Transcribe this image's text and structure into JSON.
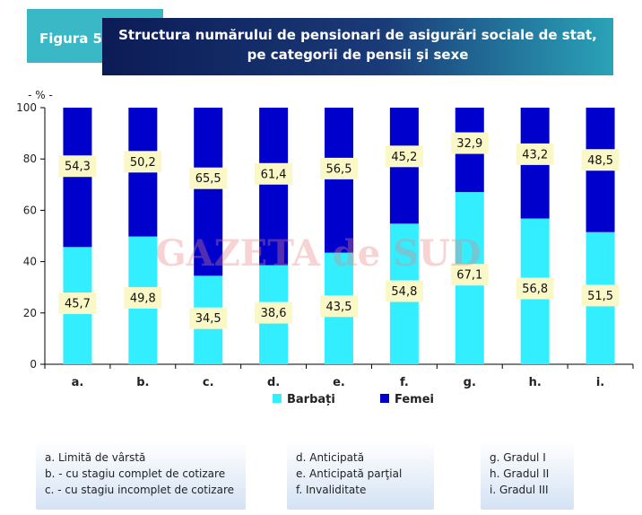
{
  "header": {
    "figure_label": "Figura 5",
    "title_line1": "Structura numărului de pensionari de asigurări sociale de stat,",
    "title_line2": "pe categorii de pensii şi sexe"
  },
  "watermark": "GAZETA de SUD",
  "colors": {
    "barbati": "#33eeff",
    "femei": "#0000cc",
    "label_bg": "#fbf8c8"
  },
  "chart_data": {
    "type": "bar",
    "stacked": true,
    "unit_label": "- % -",
    "categories": [
      "a.",
      "b.",
      "c.",
      "d.",
      "e.",
      "f.",
      "g.",
      "h.",
      "i."
    ],
    "series": [
      {
        "name": "Barbați",
        "values": [
          45.7,
          49.8,
          34.5,
          38.6,
          43.5,
          54.8,
          67.1,
          56.8,
          51.5
        ]
      },
      {
        "name": "Femei",
        "values": [
          54.3,
          50.2,
          65.5,
          61.4,
          56.5,
          45.2,
          32.9,
          43.2,
          48.5
        ]
      }
    ],
    "ylim": [
      0,
      100
    ],
    "yticks": [
      0,
      20,
      40,
      60,
      80,
      100
    ],
    "data_labels": {
      "barbati": [
        "45,7",
        "49,8",
        "34,5",
        "38,6",
        "43,5",
        "54,8",
        "67,1",
        "56,8",
        "51,5"
      ],
      "femei": [
        "54,3",
        "50,2",
        "65,5",
        "61,4",
        "56,5",
        "45,2",
        "32,9",
        "43,2",
        "48,5"
      ]
    },
    "legend_position": "bottom"
  },
  "category_legend": {
    "group1": [
      "a. Limită de vârstă",
      "b. - cu stagiu complet de cotizare",
      "c. - cu stagiu incomplet de cotizare"
    ],
    "group2": [
      "d. Anticipată",
      "e. Anticipată parţial",
      "f. Invaliditate"
    ],
    "group3": [
      "g. Gradul I",
      "h. Gradul II",
      "i. Gradul III"
    ]
  }
}
